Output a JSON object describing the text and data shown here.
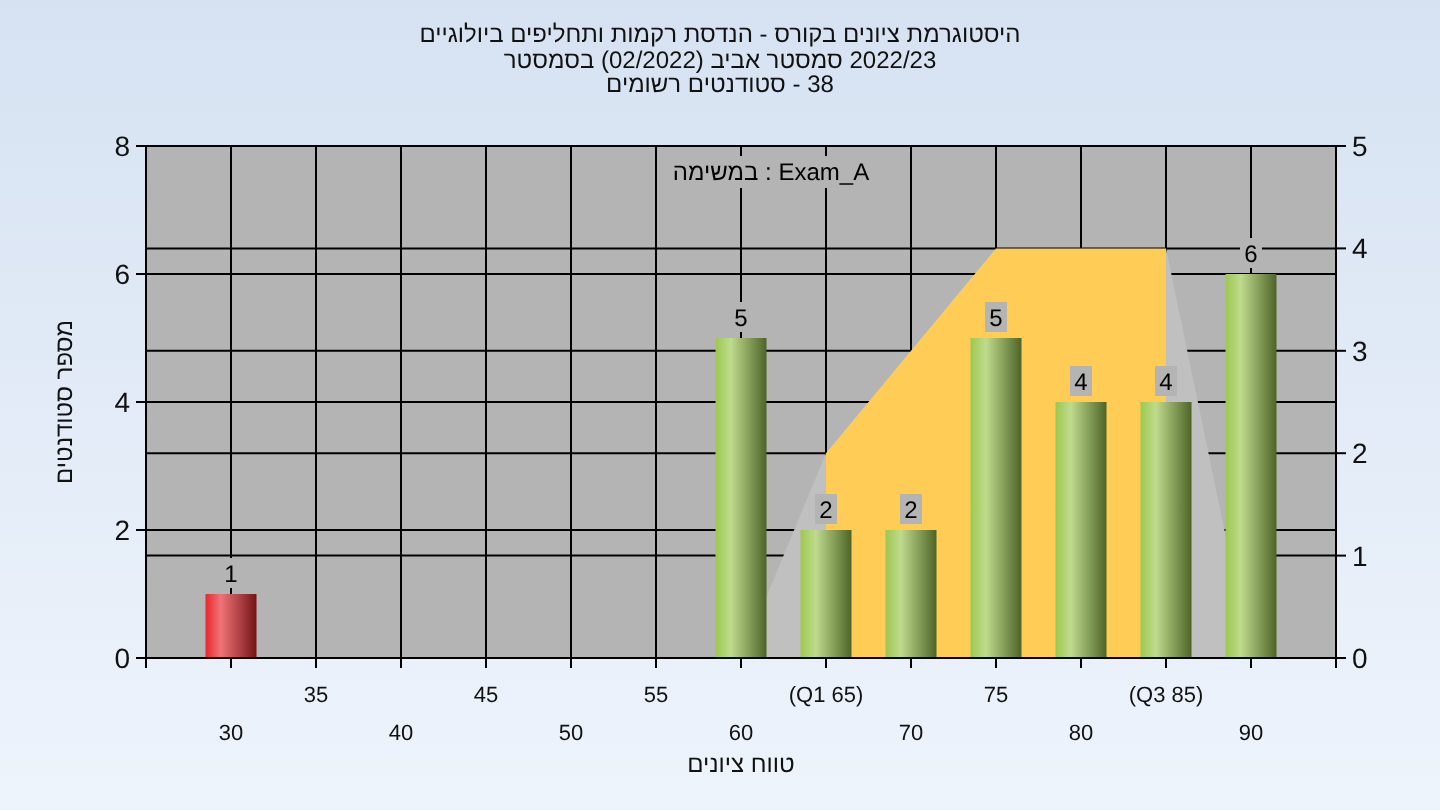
{
  "chart_data": {
    "type": "bar",
    "title": "היסטוגרמת ציונים בקורס - הנדסת רקמות ותחליפים ביולוגיים",
    "subtitle": "2022/23 סמסטר אביב (02/2022) בסמסטר\n38 - סטודנטים רשומים",
    "xlabel": "טווח ציונים",
    "ylabel": "מספר סטודנטים",
    "annotations": [
      "במשימה : Exam_A"
    ],
    "categories": [
      "30",
      "35",
      "40",
      "45",
      "50",
      "55",
      "60",
      "(Q1 65)",
      "70",
      "75",
      "80",
      "(Q3 85)",
      "90"
    ],
    "series": [
      {
        "type": "area",
        "axis": "y2",
        "color": "#c0c0c0",
        "values": [
          null,
          null,
          null,
          null,
          null,
          null,
          0,
          2,
          null,
          null,
          null,
          null,
          null
        ]
      },
      {
        "type": "area",
        "axis": "y2",
        "color": "#ffcc55",
        "values": [
          null,
          null,
          null,
          null,
          null,
          null,
          null,
          2,
          3,
          4,
          4,
          4,
          null
        ]
      },
      {
        "type": "area",
        "axis": "y2",
        "color": "#c0c0c0",
        "values": [
          null,
          null,
          null,
          null,
          null,
          null,
          null,
          null,
          null,
          null,
          null,
          4,
          0
        ]
      },
      {
        "values": [
          1,
          0,
          0,
          0,
          0,
          0,
          5,
          2,
          2,
          5,
          4,
          4,
          6
        ],
        "colors": [
          "#e8282c",
          "#9cc850",
          "#9cc850",
          "#9cc850",
          "#9cc850",
          "#9cc850",
          "#9cc850",
          "#9cc850",
          "#9cc850",
          "#9cc850",
          "#9cc850",
          "#9cc850",
          "#9cc850"
        ],
        "value_labels": [
          "1",
          null,
          null,
          null,
          null,
          null,
          "5",
          "2",
          "2",
          "5",
          "4",
          "4",
          "6"
        ]
      }
    ],
    "ylim": [
      0,
      8
    ],
    "yticks": [
      0,
      2,
      4,
      6,
      8
    ],
    "y2lim": [
      0,
      5
    ],
    "y2ticks": [
      0,
      1,
      2,
      3,
      4,
      5
    ],
    "grid": true
  }
}
